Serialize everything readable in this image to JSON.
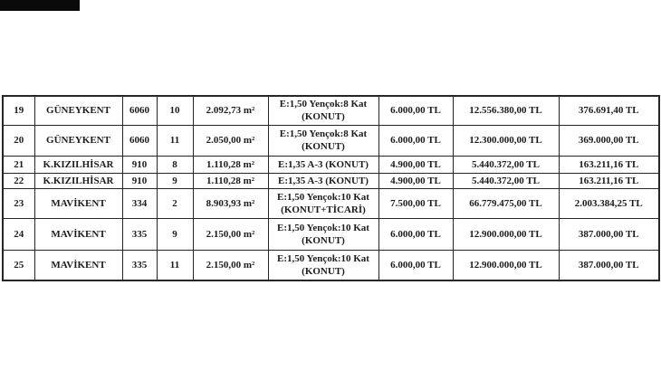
{
  "artifact": {
    "color": "#0a0a0a"
  },
  "table": {
    "rows": [
      {
        "no": "19",
        "district": "GÜNEYKENT",
        "block": "6060",
        "lot": "10",
        "area": "2.092,73 m²",
        "zoning": "E:1,50 Yençok:8 Kat (KONUT)",
        "unit_price": "6.000,00 TL",
        "total_price": "12.556.380,00 TL",
        "deposit": "376.691,40 TL"
      },
      {
        "no": "20",
        "district": "GÜNEYKENT",
        "block": "6060",
        "lot": "11",
        "area": "2.050,00 m²",
        "zoning": "E:1,50 Yençok:8 Kat (KONUT)",
        "unit_price": "6.000,00 TL",
        "total_price": "12.300.000,00 TL",
        "deposit": "369.000,00 TL"
      },
      {
        "no": "21",
        "district": "K.KIZILHİSAR",
        "block": "910",
        "lot": "8",
        "area": "1.110,28 m²",
        "zoning": "E:1,35 A-3 (KONUT)",
        "unit_price": "4.900,00 TL",
        "total_price": "5.440.372,00 TL",
        "deposit": "163.211,16 TL"
      },
      {
        "no": "22",
        "district": "K.KIZILHİSAR",
        "block": "910",
        "lot": "9",
        "area": "1.110,28 m²",
        "zoning": "E:1,35 A-3 (KONUT)",
        "unit_price": "4.900,00 TL",
        "total_price": "5.440.372,00 TL",
        "deposit": "163.211,16 TL"
      },
      {
        "no": "23",
        "district": "MAVİKENT",
        "block": "334",
        "lot": "2",
        "area": "8.903,93 m²",
        "zoning": "E:1,50 Yençok:10 Kat (KONUT+TİCARİ)",
        "unit_price": "7.500,00 TL",
        "total_price": "66.779.475,00 TL",
        "deposit": "2.003.384,25 TL"
      },
      {
        "no": "24",
        "district": "MAVİKENT",
        "block": "335",
        "lot": "9",
        "area": "2.150,00 m²",
        "zoning": "E:1,50 Yençok:10 Kat (KONUT)",
        "unit_price": "6.000,00 TL",
        "total_price": "12.900.000,00 TL",
        "deposit": "387.000,00 TL"
      },
      {
        "no": "25",
        "district": "MAVİKENT",
        "block": "335",
        "lot": "11",
        "area": "2.150,00 m²",
        "zoning": "E:1,50 Yençok:10 Kat (KONUT)",
        "unit_price": "6.000,00 TL",
        "total_price": "12.900.000,00 TL",
        "deposit": "387.000,00 TL"
      }
    ]
  }
}
